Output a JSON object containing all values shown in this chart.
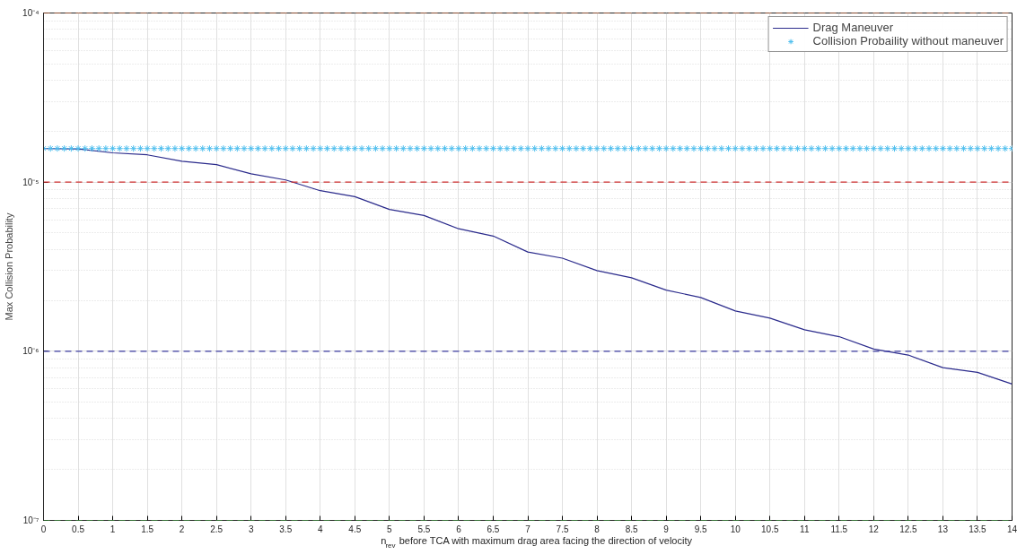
{
  "chart_data": {
    "type": "line",
    "xlabel": "n$_{rev}$ before TCA with maximum drag area facing the direction of velocity",
    "ylabel": "Max Collision Probability",
    "log": "y",
    "grid": true,
    "legend": "top right",
    "xlim": [
      0,
      14
    ],
    "ylim": [
      1e-07,
      0.0001
    ],
    "xticks": [
      0,
      0.5,
      1,
      1.5,
      2,
      2.5,
      3,
      3.5,
      4,
      4.5,
      5,
      5.5,
      6,
      6.5,
      7,
      7.5,
      8,
      8.5,
      9,
      9.5,
      10,
      10.5,
      11,
      11.5,
      12,
      12.5,
      13,
      13.5,
      14
    ],
    "yticks": [
      {
        "value": 1e-07,
        "label": "10⁻⁷"
      },
      {
        "value": 1e-06,
        "label": "10⁻⁶"
      },
      {
        "value": 1e-05,
        "label": "10⁻⁵"
      },
      {
        "value": 0.0001,
        "label": "10⁻⁴"
      }
    ],
    "series": [
      {
        "name": "Drag Maneuver",
        "color": "#2b2b8c",
        "line_style": "solid",
        "marker": "none",
        "x": [
          0,
          0.5,
          1,
          1.5,
          2,
          2.5,
          3,
          3.5,
          4,
          4.5,
          5,
          5.5,
          6,
          6.5,
          7,
          7.5,
          8,
          8.5,
          9,
          9.5,
          10,
          10.5,
          11,
          11.5,
          12,
          12.5,
          13,
          13.5,
          14
        ],
        "values": [
          1.58e-05,
          1.57e-05,
          1.49e-05,
          1.45e-05,
          1.33e-05,
          1.27e-05,
          1.12e-05,
          1.03e-05,
          8.9e-06,
          8.2e-06,
          6.9e-06,
          6.35e-06,
          5.3e-06,
          4.8e-06,
          3.86e-06,
          3.55e-06,
          3e-06,
          2.72e-06,
          2.3e-06,
          2.08e-06,
          1.73e-06,
          1.57e-06,
          1.34e-06,
          1.22e-06,
          1.03e-06,
          9.5e-07,
          8e-07,
          7.5e-07,
          6.4e-07
        ]
      },
      {
        "name": "Collision Probaility without maneuver",
        "type": "scatter",
        "color": "#4dbeee",
        "marker": "cross",
        "x": [
          0,
          0.1,
          0.2,
          0.3,
          0.4,
          0.5,
          0.6,
          0.7,
          0.8,
          0.9,
          1,
          1.1,
          1.2,
          1.3,
          1.4,
          1.5,
          1.6,
          1.7,
          1.8,
          1.9,
          2,
          2.1,
          2.2,
          2.3,
          2.4,
          2.5,
          2.6,
          2.7,
          2.8,
          2.9,
          3,
          3.1,
          3.2,
          3.3,
          3.4,
          3.5,
          3.6,
          3.7,
          3.8,
          3.9,
          4,
          4.1,
          4.2,
          4.3,
          4.4,
          4.5,
          4.6,
          4.7,
          4.8,
          4.9,
          5,
          5.1,
          5.2,
          5.3,
          5.4,
          5.5,
          5.6,
          5.7,
          5.8,
          5.9,
          6,
          6.1,
          6.2,
          6.3,
          6.4,
          6.5,
          6.6,
          6.7,
          6.8,
          6.9,
          7,
          7.1,
          7.2,
          7.3,
          7.4,
          7.5,
          7.6,
          7.7,
          7.8,
          7.9,
          8,
          8.1,
          8.2,
          8.3,
          8.4,
          8.5,
          8.6,
          8.7,
          8.8,
          8.9,
          9,
          9.1,
          9.2,
          9.3,
          9.4,
          9.5,
          9.6,
          9.7,
          9.8,
          9.9,
          10,
          10.1,
          10.2,
          10.3,
          10.4,
          10.5,
          10.6,
          10.7,
          10.8,
          10.9,
          11,
          11.1,
          11.2,
          11.3,
          11.4,
          11.5,
          11.6,
          11.7,
          11.8,
          11.9,
          12,
          12.1,
          12.2,
          12.3,
          12.4,
          12.5,
          12.6,
          12.7,
          12.8,
          12.9,
          13,
          13.1,
          13.2,
          13.3,
          13.4,
          13.5,
          13.6,
          13.7,
          13.8,
          13.9,
          14
        ],
        "values": [
          1.58e-05,
          1.58e-05,
          1.58e-05,
          1.58e-05,
          1.58e-05,
          1.58e-05,
          1.58e-05,
          1.58e-05,
          1.58e-05,
          1.58e-05,
          1.58e-05,
          1.58e-05,
          1.58e-05,
          1.58e-05,
          1.58e-05,
          1.58e-05,
          1.58e-05,
          1.58e-05,
          1.58e-05,
          1.58e-05,
          1.58e-05,
          1.58e-05,
          1.58e-05,
          1.58e-05,
          1.58e-05,
          1.58e-05,
          1.58e-05,
          1.58e-05,
          1.58e-05,
          1.58e-05,
          1.58e-05,
          1.58e-05,
          1.58e-05,
          1.58e-05,
          1.58e-05,
          1.58e-05,
          1.58e-05,
          1.58e-05,
          1.58e-05,
          1.58e-05,
          1.58e-05,
          1.58e-05,
          1.58e-05,
          1.58e-05,
          1.58e-05,
          1.58e-05,
          1.58e-05,
          1.58e-05,
          1.58e-05,
          1.58e-05,
          1.58e-05,
          1.58e-05,
          1.58e-05,
          1.58e-05,
          1.58e-05,
          1.58e-05,
          1.58e-05,
          1.58e-05,
          1.58e-05,
          1.58e-05,
          1.58e-05,
          1.58e-05,
          1.58e-05,
          1.58e-05,
          1.58e-05,
          1.58e-05,
          1.58e-05,
          1.58e-05,
          1.58e-05,
          1.58e-05,
          1.58e-05,
          1.58e-05,
          1.58e-05,
          1.58e-05,
          1.58e-05,
          1.58e-05,
          1.58e-05,
          1.58e-05,
          1.58e-05,
          1.58e-05,
          1.58e-05,
          1.58e-05,
          1.58e-05,
          1.58e-05,
          1.58e-05,
          1.58e-05,
          1.58e-05,
          1.58e-05,
          1.58e-05,
          1.58e-05,
          1.58e-05,
          1.58e-05,
          1.58e-05,
          1.58e-05,
          1.58e-05,
          1.58e-05,
          1.58e-05,
          1.58e-05,
          1.58e-05,
          1.58e-05,
          1.58e-05,
          1.58e-05,
          1.58e-05,
          1.58e-05,
          1.58e-05,
          1.58e-05,
          1.58e-05,
          1.58e-05,
          1.58e-05,
          1.58e-05,
          1.58e-05,
          1.58e-05,
          1.58e-05,
          1.58e-05,
          1.58e-05,
          1.58e-05,
          1.58e-05,
          1.58e-05,
          1.58e-05,
          1.58e-05,
          1.58e-05,
          1.58e-05,
          1.58e-05,
          1.58e-05,
          1.58e-05,
          1.58e-05,
          1.58e-05,
          1.58e-05,
          1.58e-05,
          1.58e-05,
          1.58e-05,
          1.58e-05,
          1.58e-05,
          1.58e-05,
          1.58e-05,
          1.58e-05,
          1.58e-05,
          1.58e-05,
          1.58e-05,
          1.58e-05,
          1.58e-05
        ]
      }
    ],
    "ref_lines": [
      {
        "axis": "y",
        "value": 0.0001,
        "label": null,
        "color": "#e8703a",
        "line_style": "dashed"
      },
      {
        "axis": "y",
        "value": 1e-05,
        "label": null,
        "color": "#d03030",
        "line_style": "dashed"
      },
      {
        "axis": "y",
        "value": 1e-06,
        "label": null,
        "color": "#3c3ca0",
        "line_style": "dashed"
      },
      {
        "axis": "y",
        "value": 1e-07,
        "label": null,
        "color": "#40b840",
        "line_style": "dashed"
      }
    ]
  }
}
